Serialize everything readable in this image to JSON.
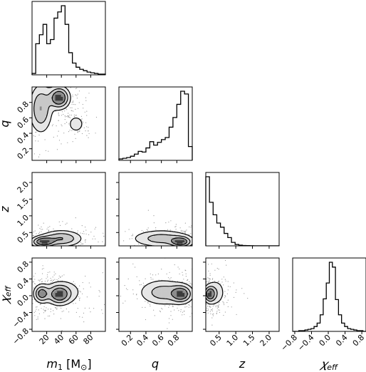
{
  "chart_data": {
    "type": "corner",
    "parameters": [
      {
        "key": "m1",
        "label": "m₁ [M⊙]",
        "range": [
          0,
          100
        ],
        "ticks": [
          "20",
          "40",
          "60",
          "80"
        ],
        "tick_values": [
          20,
          40,
          60,
          80
        ]
      },
      {
        "key": "q",
        "label": "q",
        "range": [
          0.05,
          1.0
        ],
        "ticks": [
          "0.2",
          "0.4",
          "0.6",
          "0.8"
        ],
        "tick_values": [
          0.2,
          0.4,
          0.6,
          0.8
        ]
      },
      {
        "key": "z",
        "label": "z",
        "range": [
          0.1,
          2.3
        ],
        "ticks": [
          "0.5",
          "1.0",
          "1.5",
          "2.0"
        ],
        "tick_values": [
          0.5,
          1.0,
          1.5,
          2.0
        ]
      },
      {
        "key": "chi_eff",
        "label": "𝜒eff",
        "range": [
          -0.85,
          0.9
        ],
        "ticks": [
          "−0.8",
          "−0.4",
          "0.0",
          "0.4",
          "0.8"
        ],
        "tick_values": [
          -0.8,
          -0.4,
          0.0,
          0.4,
          0.8
        ]
      }
    ],
    "histograms": [
      {
        "param": "m1",
        "heights": [
          0.02,
          0.45,
          0.58,
          0.73,
          0.45,
          0.51,
          0.82,
          0.91,
          1.0,
          0.73,
          0.32,
          0.17,
          0.11,
          0.08,
          0.06,
          0.04,
          0.03,
          0.02,
          0.01,
          0.01
        ]
      },
      {
        "param": "q",
        "heights": [
          0.02,
          0.03,
          0.04,
          0.06,
          0.09,
          0.13,
          0.12,
          0.18,
          0.27,
          0.22,
          0.26,
          0.3,
          0.33,
          0.48,
          0.62,
          0.81,
          1.0,
          0.96,
          0.2
        ]
      },
      {
        "param": "z",
        "heights": [
          1.0,
          0.63,
          0.45,
          0.33,
          0.27,
          0.18,
          0.12,
          0.05,
          0.02,
          0.01,
          0.005,
          0.003,
          0.002,
          0.001,
          0.001,
          0.001,
          0.001,
          0.001,
          0.001,
          0.001
        ]
      },
      {
        "param": "chi_eff",
        "heights": [
          0.0,
          0.0,
          0.01,
          0.01,
          0.02,
          0.03,
          0.04,
          0.07,
          0.12,
          0.24,
          0.47,
          0.7,
          1.0,
          0.93,
          0.46,
          0.24,
          0.12,
          0.07,
          0.04,
          0.03,
          0.02,
          0.01,
          0.01,
          0.0
        ]
      }
    ],
    "density": [
      {
        "x": "m1",
        "y": "q",
        "blobs": [
          {
            "x": 37,
            "y": 0.86,
            "sx": 8,
            "sy": 0.08,
            "w": 1.0
          },
          {
            "x": 12,
            "y": 0.72,
            "sx": 9,
            "sy": 0.18,
            "w": 0.6
          },
          {
            "x": 60,
            "y": 0.52,
            "sx": 6,
            "sy": 0.06,
            "w": 0.35
          }
        ]
      },
      {
        "x": "m1",
        "y": "z",
        "blobs": [
          {
            "x": 15,
            "y": 0.22,
            "sx": 9,
            "sy": 0.09,
            "w": 1.0
          },
          {
            "x": 40,
            "y": 0.32,
            "sx": 16,
            "sy": 0.14,
            "w": 0.7
          }
        ]
      },
      {
        "x": "q",
        "y": "z",
        "blobs": [
          {
            "x": 0.85,
            "y": 0.22,
            "sx": 0.08,
            "sy": 0.09,
            "w": 1.0
          },
          {
            "x": 0.6,
            "y": 0.32,
            "sx": 0.22,
            "sy": 0.15,
            "w": 0.6
          }
        ]
      },
      {
        "x": "m1",
        "y": "chi_eff",
        "blobs": [
          {
            "x": 13,
            "y": 0.05,
            "sx": 6,
            "sy": 0.12,
            "w": 1.0
          },
          {
            "x": 37,
            "y": 0.03,
            "sx": 9,
            "sy": 0.13,
            "w": 1.1
          },
          {
            "x": 45,
            "y": 0.1,
            "sx": 18,
            "sy": 0.2,
            "w": 0.3
          }
        ]
      },
      {
        "x": "q",
        "y": "chi_eff",
        "blobs": [
          {
            "x": 0.86,
            "y": 0.04,
            "sx": 0.08,
            "sy": 0.12,
            "w": 1.0
          },
          {
            "x": 0.62,
            "y": 0.08,
            "sx": 0.18,
            "sy": 0.18,
            "w": 0.6
          }
        ]
      },
      {
        "x": "z",
        "y": "chi_eff",
        "blobs": [
          {
            "x": 0.22,
            "y": 0.04,
            "sx": 0.1,
            "sy": 0.11,
            "w": 1.0
          },
          {
            "x": 0.4,
            "y": 0.08,
            "sx": 0.18,
            "sy": 0.2,
            "w": 0.35
          }
        ]
      }
    ]
  }
}
